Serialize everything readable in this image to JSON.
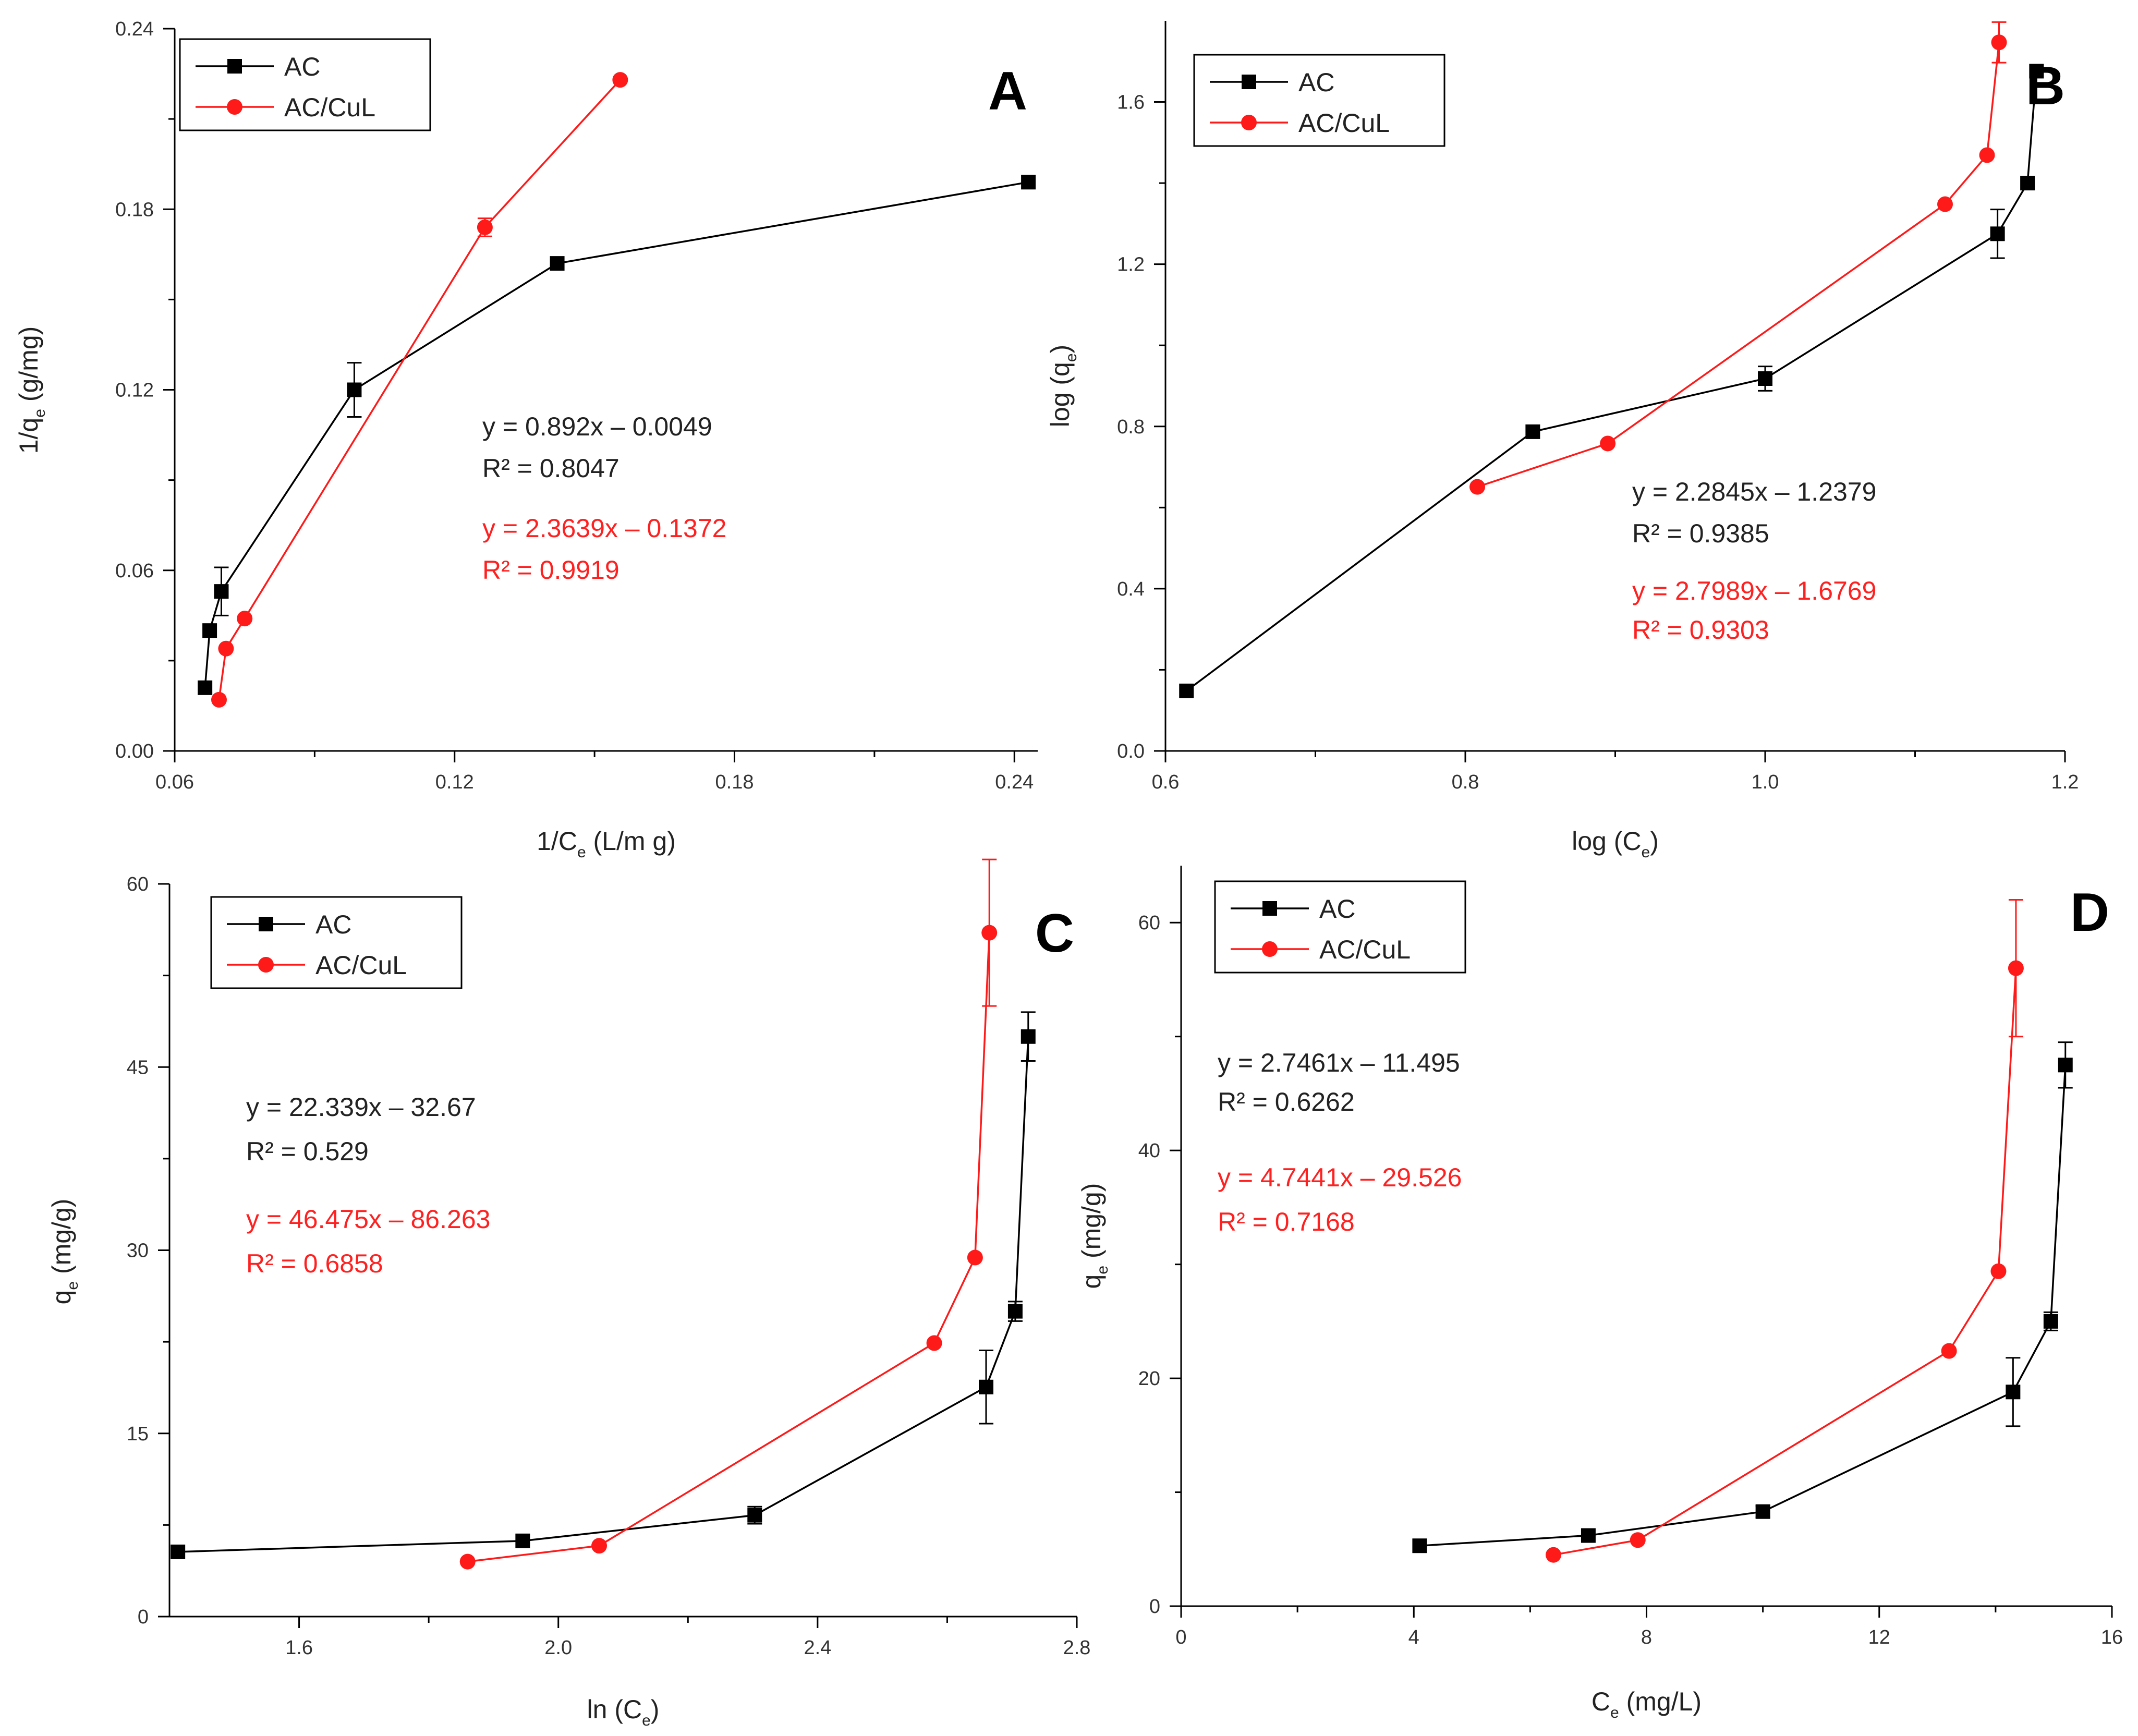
{
  "colors": {
    "black_series": "#000000",
    "red_series": "#ff1a1a",
    "red_text": "#ff2020"
  },
  "chart_data": [
    {
      "type": "line",
      "panel_label": "A",
      "xlabel": {
        "main": "1/C",
        "sub": "e",
        "suffix": " (L/m g)"
      },
      "ylabel": {
        "main": "1/q",
        "sub": "e",
        "suffix": " (g/mg)"
      },
      "xlim": [
        0.06,
        0.245
      ],
      "ylim": [
        0,
        0.24
      ],
      "xticks": [
        0.06,
        0.12,
        0.18,
        0.24
      ],
      "xtick_labels": [
        "0.06",
        "0.12",
        "0.18",
        "0.24"
      ],
      "yticks": [
        0,
        0.06,
        0.12,
        0.18,
        0.24
      ],
      "ytick_labels": [
        "0.00",
        "0.06",
        "0.12",
        "0.18",
        "0.24"
      ],
      "legend": {
        "position": "top-left",
        "entries": [
          "AC",
          "AC/CuL"
        ]
      },
      "series": [
        {
          "name": "AC",
          "marker": "square",
          "x": [
            0.0665,
            0.0675,
            0.07,
            0.0985,
            0.142,
            0.243
          ],
          "y": [
            0.021,
            0.04,
            0.053,
            0.12,
            0.162,
            0.189
          ],
          "err": [
            0,
            0,
            0.008,
            0.009,
            0,
            0
          ]
        },
        {
          "name": "AC/CuL",
          "marker": "circle",
          "x": [
            0.0695,
            0.071,
            0.075,
            0.1265,
            0.1555
          ],
          "y": [
            0.017,
            0.034,
            0.044,
            0.174,
            0.223
          ],
          "err": [
            0,
            0,
            0,
            0.003,
            0
          ]
        }
      ],
      "equations": {
        "AC": {
          "eq": "y = 0.892x – 0.0049",
          "r2": "R² = 0.8047"
        },
        "AC/CuL": {
          "eq": "y = 2.3639x – 0.1372",
          "r2": "R² = 0.9919"
        }
      }
    },
    {
      "type": "line",
      "panel_label": "B",
      "xlabel": {
        "main": "log (C",
        "sub": "e",
        "suffix": ")"
      },
      "ylabel": {
        "main": "log (q",
        "sub": "e",
        "suffix": ")"
      },
      "xlim": [
        0.6,
        1.2
      ],
      "ylim": [
        0,
        1.8
      ],
      "xticks": [
        0.6,
        0.8,
        1.0,
        1.2
      ],
      "xtick_labels": [
        "0.6",
        "0.8",
        "1.0",
        "1.2"
      ],
      "yticks": [
        0,
        0.4,
        0.8,
        1.2,
        1.6
      ],
      "ytick_labels": [
        "0.0",
        "0.4",
        "0.8",
        "1.2",
        "1.6"
      ],
      "legend": {
        "position": "top-left",
        "entries": [
          "AC",
          "AC/CuL"
        ]
      },
      "series": [
        {
          "name": "AC",
          "marker": "square",
          "x": [
            0.614,
            0.845,
            1.0,
            1.155,
            1.175,
            1.181
          ],
          "y": [
            0.148,
            0.787,
            0.918,
            1.275,
            1.4,
            1.676
          ],
          "err": [
            0,
            0,
            0.03,
            0.06,
            0,
            0
          ]
        },
        {
          "name": "AC/CuL",
          "marker": "circle",
          "x": [
            0.808,
            0.895,
            1.12,
            1.148,
            1.156
          ],
          "y": [
            0.651,
            0.758,
            1.348,
            1.469,
            1.747
          ],
          "err": [
            0,
            0,
            0,
            0,
            0.05
          ]
        }
      ],
      "equations": {
        "AC": {
          "eq": "y = 2.2845x – 1.2379",
          "r2": "R² = 0.9385"
        },
        "AC/CuL": {
          "eq": "y = 2.7989x – 1.6769",
          "r2": "R² = 0.9303"
        }
      }
    },
    {
      "type": "line",
      "panel_label": "C",
      "xlabel": {
        "main": "ln (C",
        "sub": "e",
        "suffix": ")"
      },
      "ylabel": {
        "main": "q",
        "sub": "e",
        "suffix": " (mg/g)"
      },
      "xlim": [
        1.4,
        2.8
      ],
      "ylim": [
        0,
        60
      ],
      "xticks": [
        1.6,
        2.0,
        2.4,
        2.8
      ],
      "xtick_labels": [
        "1.6",
        "2.0",
        "2.4",
        "2.8"
      ],
      "yticks": [
        0,
        15,
        30,
        45,
        60
      ],
      "ytick_labels": [
        "0",
        "15",
        "30",
        "45",
        "60"
      ],
      "legend": {
        "position": "top-left",
        "entries": [
          "AC",
          "AC/CuL"
        ]
      },
      "series": [
        {
          "name": "AC",
          "marker": "square",
          "x": [
            1.413,
            1.945,
            2.303,
            2.66,
            2.705,
            2.725
          ],
          "y": [
            5.3,
            6.2,
            8.3,
            18.8,
            25.0,
            47.5
          ],
          "err": [
            0,
            0,
            0.7,
            3.0,
            0.8,
            2.0
          ]
        },
        {
          "name": "AC/CuL",
          "marker": "circle",
          "x": [
            1.86,
            2.063,
            2.58,
            2.643,
            2.665
          ],
          "y": [
            4.5,
            5.8,
            22.4,
            29.4,
            56.0
          ],
          "err": [
            0,
            0,
            0,
            0,
            6.0
          ]
        }
      ],
      "equations": {
        "AC": {
          "eq": "y = 22.339x – 32.67",
          "r2": "R² = 0.529"
        },
        "AC/CuL": {
          "eq": "y = 46.475x – 86.263",
          "r2": "R² = 0.6858"
        }
      }
    },
    {
      "type": "line",
      "panel_label": "D",
      "xlabel": {
        "main": "C",
        "sub": "e",
        "suffix": " (mg/L)"
      },
      "ylabel": {
        "main": "q",
        "sub": "e",
        "suffix": " (mg/g)"
      },
      "xlim": [
        0,
        16
      ],
      "ylim": [
        0,
        65
      ],
      "xticks": [
        0,
        4,
        8,
        12,
        16
      ],
      "xtick_labels": [
        "0",
        "4",
        "8",
        "12",
        "16"
      ],
      "yticks": [
        0,
        20,
        40,
        60
      ],
      "ytick_labels": [
        "0",
        "20",
        "40",
        "60"
      ],
      "legend": {
        "position": "top-left",
        "entries": [
          "AC",
          "AC/CuL"
        ]
      },
      "series": [
        {
          "name": "AC",
          "marker": "square",
          "x": [
            4.1,
            7.0,
            10.0,
            14.3,
            14.95,
            15.2
          ],
          "y": [
            5.3,
            6.2,
            8.3,
            18.8,
            25.0,
            47.5
          ],
          "err": [
            0,
            0,
            0.5,
            3.0,
            0.8,
            2.0
          ]
        },
        {
          "name": "AC/CuL",
          "marker": "circle",
          "x": [
            6.4,
            7.85,
            13.2,
            14.05,
            14.35
          ],
          "y": [
            4.5,
            5.8,
            22.4,
            29.4,
            56.0
          ],
          "err": [
            0,
            0,
            0,
            0,
            6.0
          ]
        }
      ],
      "equations": {
        "AC": {
          "eq": "y = 2.7461x – 11.495",
          "r2": "R² = 0.6262"
        },
        "AC/CuL": {
          "eq": "y = 4.7441x – 29.526",
          "r2": "R² = 0.7168"
        }
      }
    }
  ]
}
